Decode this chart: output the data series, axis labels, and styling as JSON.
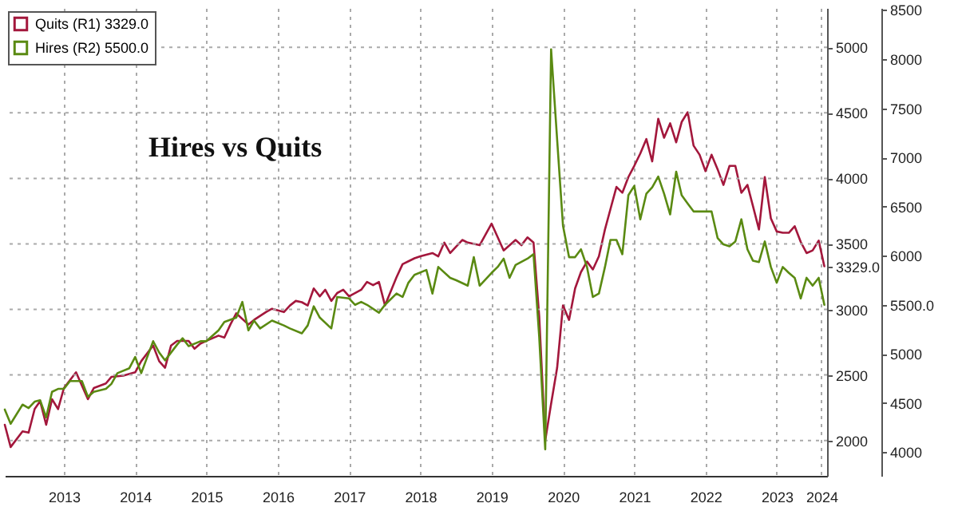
{
  "chart_data": {
    "type": "line",
    "title": "Hires vs Quits",
    "xlim": [
      "2012-09-01",
      "2024-03-15"
    ],
    "xticks": [
      {
        "value": "2013-07-01",
        "label": "2013"
      },
      {
        "value": "2014-07-01",
        "label": "2014"
      },
      {
        "value": "2015-07-01",
        "label": "2015"
      },
      {
        "value": "2016-07-01",
        "label": "2016"
      },
      {
        "value": "2017-07-01",
        "label": "2017"
      },
      {
        "value": "2018-07-01",
        "label": "2018"
      },
      {
        "value": "2019-07-01",
        "label": "2019"
      },
      {
        "value": "2020-07-01",
        "label": "2020"
      },
      {
        "value": "2021-07-01",
        "label": "2021"
      },
      {
        "value": "2022-07-01",
        "label": "2022"
      },
      {
        "value": "2023-07-01",
        "label": "2023"
      },
      {
        "value": "2024-02-15",
        "label": "2024"
      }
    ],
    "ylim": [
      1730,
      5300
    ],
    "yticks": [
      2000,
      2500,
      3000,
      {
        "value": 3329,
        "label": "3329.0"
      },
      3500,
      4000,
      4500,
      5000
    ],
    "y2lim": [
      3760,
      8520
    ],
    "y2ticks": [
      4000,
      4500,
      5000,
      {
        "value": 5500,
        "label": "5500.0"
      },
      6000,
      6500,
      7000,
      7500,
      8000,
      8500
    ],
    "grid": true,
    "legend": "top left",
    "series": [
      {
        "name": "Quits (R1) 3329.0",
        "color": "#a3173c",
        "x": [
          "2012-09",
          "2012-10",
          "2012-12",
          "2013-01",
          "2013-02",
          "2013-03",
          "2013-04",
          "2013-05",
          "2013-06",
          "2013-07",
          "2013-09",
          "2013-11",
          "2013-12",
          "2014-02",
          "2014-03",
          "2014-05",
          "2014-07",
          "2014-08",
          "2014-10",
          "2014-11",
          "2014-12",
          "2015-01",
          "2015-02",
          "2015-04",
          "2015-05",
          "2015-06",
          "2015-07",
          "2015-09",
          "2015-10",
          "2015-11",
          "2015-12",
          "2016-02",
          "2016-03",
          "2016-05",
          "2016-06",
          "2016-08",
          "2016-09",
          "2016-10",
          "2016-11",
          "2016-12",
          "2017-01",
          "2017-02",
          "2017-03",
          "2017-04",
          "2017-05",
          "2017-06",
          "2017-07",
          "2017-09",
          "2017-10",
          "2017-11",
          "2017-12",
          "2018-01",
          "2018-03",
          "2018-04",
          "2018-06",
          "2018-07",
          "2018-09",
          "2018-10",
          "2018-11",
          "2018-12",
          "2019-02",
          "2019-03",
          "2019-05",
          "2019-07",
          "2019-09",
          "2019-11",
          "2019-12",
          "2020-01",
          "2020-02",
          "2020-03",
          "2020-04",
          "2020-05",
          "2020-06",
          "2020-07",
          "2020-08",
          "2020-09",
          "2020-10",
          "2020-11",
          "2020-12",
          "2021-01",
          "2021-02",
          "2021-03",
          "2021-04",
          "2021-05",
          "2021-06",
          "2021-07",
          "2021-08",
          "2021-09",
          "2021-10",
          "2021-11",
          "2021-12",
          "2022-01",
          "2022-02",
          "2022-03",
          "2022-04",
          "2022-05",
          "2022-06",
          "2022-07",
          "2022-08",
          "2022-09",
          "2022-10",
          "2022-11",
          "2022-12",
          "2023-01",
          "2023-02",
          "2023-03",
          "2023-04",
          "2023-05",
          "2023-06",
          "2023-07",
          "2023-08",
          "2023-09",
          "2023-10",
          "2023-11",
          "2023-12",
          "2024-01",
          "2024-02",
          "2024-03"
        ],
        "values": [
          2120,
          1950,
          2070,
          2060,
          2240,
          2300,
          2120,
          2315,
          2240,
          2400,
          2520,
          2315,
          2400,
          2435,
          2485,
          2495,
          2520,
          2605,
          2725,
          2605,
          2555,
          2725,
          2760,
          2760,
          2700,
          2740,
          2760,
          2800,
          2785,
          2885,
          2970,
          2885,
          2920,
          2980,
          3005,
          2980,
          3030,
          3065,
          3055,
          3030,
          3160,
          3100,
          3150,
          3065,
          3125,
          3150,
          3100,
          3150,
          3210,
          3185,
          3210,
          3030,
          3245,
          3345,
          3390,
          3405,
          3430,
          3405,
          3510,
          3430,
          3530,
          3510,
          3490,
          3655,
          3450,
          3530,
          3490,
          3550,
          3510,
          2950,
          2000,
          2280,
          2555,
          3030,
          2920,
          3160,
          3285,
          3365,
          3305,
          3405,
          3610,
          3765,
          3935,
          3890,
          4010,
          4095,
          4190,
          4300,
          4130,
          4455,
          4310,
          4420,
          4275,
          4430,
          4505,
          4250,
          4180,
          4055,
          4180,
          4070,
          3950,
          4095,
          4095,
          3890,
          3950,
          3790,
          3610,
          4010,
          3695,
          3595,
          3585,
          3585,
          3635,
          3515,
          3430,
          3450,
          3525,
          3329
        ]
      },
      {
        "name": "Hires (R2) 5500.0",
        "color": "#5a8a12",
        "axis": "y2",
        "x": [
          "2012-09",
          "2012-10",
          "2012-12",
          "2013-01",
          "2013-02",
          "2013-03",
          "2013-04",
          "2013-05",
          "2013-06",
          "2013-07",
          "2013-08",
          "2013-10",
          "2013-11",
          "2013-12",
          "2014-02",
          "2014-03",
          "2014-04",
          "2014-06",
          "2014-07",
          "2014-08",
          "2014-10",
          "2014-11",
          "2014-12",
          "2015-02",
          "2015-03",
          "2015-04",
          "2015-06",
          "2015-07",
          "2015-09",
          "2015-10",
          "2015-12",
          "2016-01",
          "2016-02",
          "2016-03",
          "2016-04",
          "2016-06",
          "2016-08",
          "2016-09",
          "2016-11",
          "2016-12",
          "2017-01",
          "2017-02",
          "2017-04",
          "2017-05",
          "2017-07",
          "2017-08",
          "2017-09",
          "2017-10",
          "2017-12",
          "2018-01",
          "2018-03",
          "2018-04",
          "2018-05",
          "2018-06",
          "2018-08",
          "2018-09",
          "2018-10",
          "2018-12",
          "2019-01",
          "2019-03",
          "2019-04",
          "2019-05",
          "2019-07",
          "2019-08",
          "2019-09",
          "2019-10",
          "2019-11",
          "2020-01",
          "2020-02",
          "2020-03",
          "2020-04",
          "2020-05",
          "2020-06",
          "2020-07",
          "2020-08",
          "2020-09",
          "2020-10",
          "2020-11",
          "2020-12",
          "2021-01",
          "2021-02",
          "2021-03",
          "2021-04",
          "2021-05",
          "2021-06",
          "2021-07",
          "2021-08",
          "2021-09",
          "2021-10",
          "2021-11",
          "2021-12",
          "2022-01",
          "2022-02",
          "2022-03",
          "2022-04",
          "2022-05",
          "2022-06",
          "2022-07",
          "2022-08",
          "2022-09",
          "2022-10",
          "2022-11",
          "2022-12",
          "2023-01",
          "2023-02",
          "2023-03",
          "2023-04",
          "2023-05",
          "2023-06",
          "2023-07",
          "2023-08",
          "2023-09",
          "2023-10",
          "2023-11",
          "2023-12",
          "2024-01",
          "2024-02",
          "2024-03"
        ],
        "values": [
          4435,
          4290,
          4485,
          4450,
          4515,
          4530,
          4355,
          4615,
          4645,
          4645,
          4725,
          4725,
          4565,
          4615,
          4645,
          4695,
          4805,
          4855,
          4970,
          4805,
          5130,
          5015,
          4935,
          5095,
          5160,
          5080,
          5130,
          5130,
          5240,
          5325,
          5370,
          5530,
          5240,
          5340,
          5260,
          5340,
          5290,
          5260,
          5210,
          5290,
          5485,
          5370,
          5260,
          5580,
          5565,
          5500,
          5530,
          5500,
          5420,
          5500,
          5615,
          5580,
          5725,
          5805,
          5855,
          5615,
          5885,
          5775,
          5750,
          5695,
          5985,
          5695,
          5825,
          5885,
          5970,
          5775,
          5905,
          5970,
          6015,
          5180,
          4030,
          8100,
          7180,
          6305,
          5985,
          5985,
          6065,
          5885,
          5580,
          5615,
          5885,
          6160,
          6160,
          6015,
          6615,
          6710,
          6370,
          6630,
          6695,
          6805,
          6630,
          6420,
          6855,
          6615,
          6530,
          6450,
          6450,
          6450,
          6450,
          6180,
          6115,
          6095,
          6145,
          6370,
          6065,
          5950,
          5935,
          6145,
          5885,
          5725,
          5885,
          5825,
          5775,
          5565,
          5775,
          5695,
          5775,
          5500
        ]
      }
    ]
  }
}
